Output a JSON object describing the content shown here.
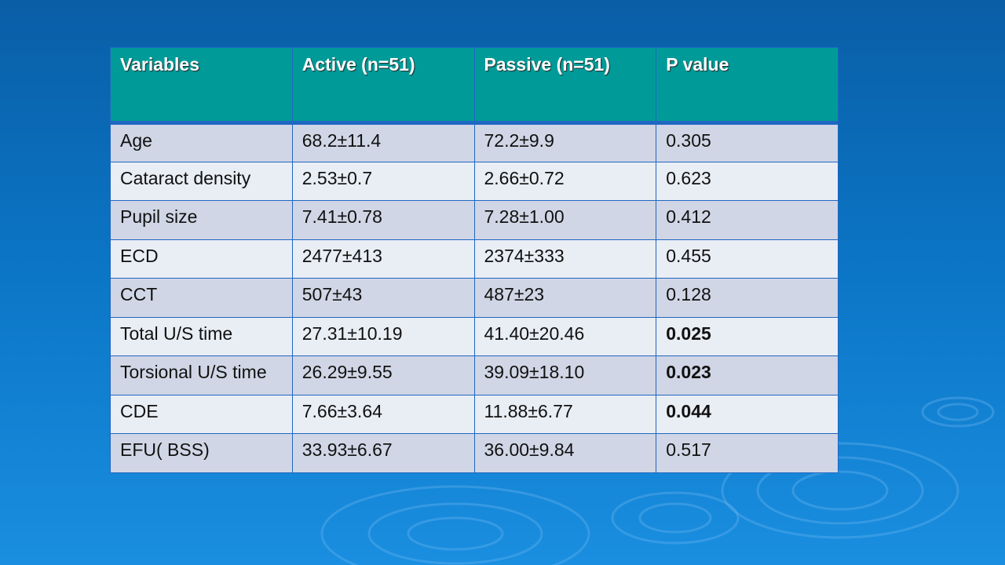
{
  "table": {
    "headers": [
      "Variables",
      "Active (n=51)",
      "Passive (n=51)",
      "P value"
    ],
    "rows": [
      {
        "variable": "Age",
        "active": "68.2±11.4",
        "passive": "72.2±9.9",
        "p": "0.305",
        "significant": false
      },
      {
        "variable": "Cataract density",
        "active": "2.53±0.7",
        "passive": "2.66±0.72",
        "p": "0.623",
        "significant": false
      },
      {
        "variable": "Pupil size",
        "active": "7.41±0.78",
        "passive": "7.28±1.00",
        "p": "0.412",
        "significant": false
      },
      {
        "variable": "ECD",
        "active": "2477±413",
        "passive": "2374±333",
        "p": "0.455",
        "significant": false
      },
      {
        "variable": "CCT",
        "active": "507±43",
        "passive": "487±23",
        "p": "0.128",
        "significant": false
      },
      {
        "variable": "Total U/S time",
        "active": "27.31±10.19",
        "passive": "41.40±20.46",
        "p": "0.025",
        "significant": true
      },
      {
        "variable": "Torsional U/S time",
        "active": "26.29±9.55",
        "passive": "39.09±18.10",
        "p": "0.023",
        "significant": true
      },
      {
        "variable": "CDE",
        "active": "7.66±3.64",
        "passive": "11.88±6.77",
        "p": "0.044",
        "significant": true
      },
      {
        "variable": "EFU( BSS)",
        "active": "33.93±6.67",
        "passive": "36.00±9.84",
        "p": "0.517",
        "significant": false
      }
    ]
  },
  "colors": {
    "header_bg": "#009b98",
    "significant_text": "#c00000",
    "row_odd": "#d0d6e5",
    "row_even": "#e9edf4"
  }
}
